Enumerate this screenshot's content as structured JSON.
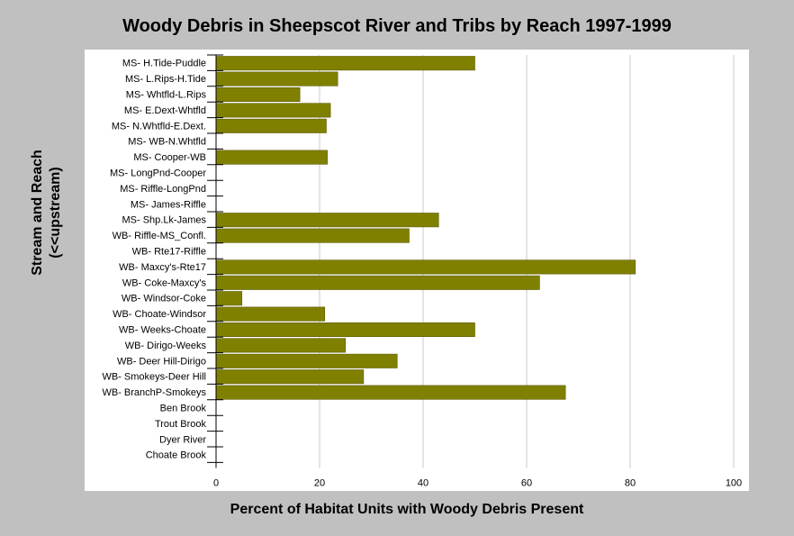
{
  "chart_data": {
    "type": "bar",
    "orientation": "horizontal",
    "title": "Woody Debris in Sheepscot River and Tribs by Reach 1997-1999",
    "ylabel": [
      "Stream and Reach",
      "(<<upstream)"
    ],
    "xlabel": "Percent of Habitat Units with Woody Debris Present",
    "xlim": [
      0,
      100
    ],
    "xticks": [
      0,
      20,
      40,
      60,
      80,
      100
    ],
    "grid": "vertical",
    "bar_color": "#808000",
    "categories": [
      "MS- H.Tide-Puddle",
      "MS- L.Rips-H.Tide",
      "MS- Whtfld-L.Rips",
      "MS- E.Dext-Whtfld",
      "MS- N.Whtfld-E.Dext.",
      "MS- WB-N.Whtfld",
      "MS- Cooper-WB",
      "MS- LongPnd-Cooper",
      "MS- Riffle-LongPnd",
      "MS- James-Riffle",
      "MS- Shp.Lk-James",
      "WB- Riffle-MS_Confl.",
      "WB- Rte17-Riffle",
      "WB- Maxcy's-Rte17",
      "WB- Coke-Maxcy's",
      "WB- Windsor-Coke",
      "WB- Choate-Windsor",
      "WB- Weeks-Choate",
      "WB- Dirigo-Weeks",
      "WB- Deer Hill-Dirigo",
      "WB- Smokeys-Deer Hill",
      "WB- BranchP-Smokeys",
      "Ben Brook",
      "Trout Brook",
      "Dyer River",
      "Choate Brook"
    ],
    "values": [
      50,
      23.5,
      16.2,
      22.1,
      21.3,
      0,
      21.5,
      0,
      0,
      0,
      43,
      37.3,
      0,
      81,
      62.5,
      5,
      21,
      50,
      25,
      35,
      28.5,
      67.5,
      0,
      0,
      0,
      0
    ]
  }
}
